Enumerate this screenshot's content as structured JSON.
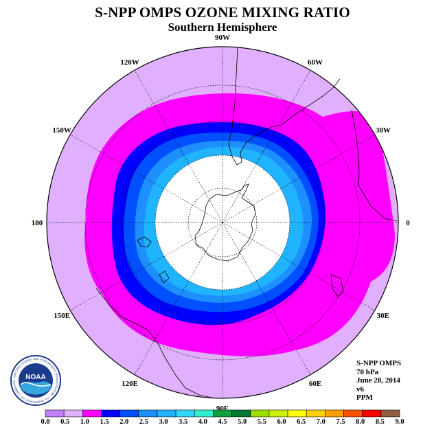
{
  "title": "S-NPP OMPS OZONE MIXING RATIO",
  "subtitle": "Southern Hemisphere",
  "longitude_labels": [
    {
      "text": "0",
      "angle_deg": 0
    },
    {
      "text": "30W",
      "angle_deg": 30
    },
    {
      "text": "60W",
      "angle_deg": 60
    },
    {
      "text": "90W",
      "angle_deg": 90
    },
    {
      "text": "120W",
      "angle_deg": 120
    },
    {
      "text": "150W",
      "angle_deg": 150
    },
    {
      "text": "180",
      "angle_deg": 180
    },
    {
      "text": "150E",
      "angle_deg": 210
    },
    {
      "text": "120E",
      "angle_deg": 240
    },
    {
      "text": "90E",
      "angle_deg": 270
    },
    {
      "text": "60E",
      "angle_deg": 300
    },
    {
      "text": "30E",
      "angle_deg": 330
    }
  ],
  "info": {
    "instrument": "S-NPP OMPS",
    "level": "70 hPa",
    "date": "June 28, 2014",
    "version": "v6",
    "units": "PPM"
  },
  "logo": {
    "text": "NOAA",
    "ring_text": "NATIONAL OCEANIC AND ATMOSPHERIC ADMINISTRATION · U.S. DEPARTMENT OF COMMERCE"
  },
  "colorbar": {
    "ticks": [
      "0.0",
      "0.5",
      "1.0",
      "1.5",
      "2.0",
      "2.5",
      "3.0",
      "3.5",
      "4.0",
      "4.5",
      "5.0",
      "5.5",
      "6.0",
      "6.5",
      "7.0",
      "7.5",
      "8.0",
      "8.5",
      "9.0"
    ],
    "colors": [
      "#c080ff",
      "#e0b0ff",
      "#ff00ff",
      "#0000ff",
      "#0050ff",
      "#1e8fff",
      "#20b4ff",
      "#30d8ff",
      "#30f0d0",
      "#10a040",
      "#007830",
      "#a0e000",
      "#d0f000",
      "#ffff00",
      "#ffd000",
      "#ffa000",
      "#ff5000",
      "#ff0000",
      "#906040"
    ]
  },
  "colors": {
    "background_low": "#e0b0ff",
    "ring_magenta": "#ff00ff",
    "ring_blue": "#0000ff",
    "ring_mid_blue": "#0050ff",
    "ring_light_blue": "#1e8fff",
    "inner_cyan": "#20b4ff",
    "no_data": "#ffffff"
  }
}
